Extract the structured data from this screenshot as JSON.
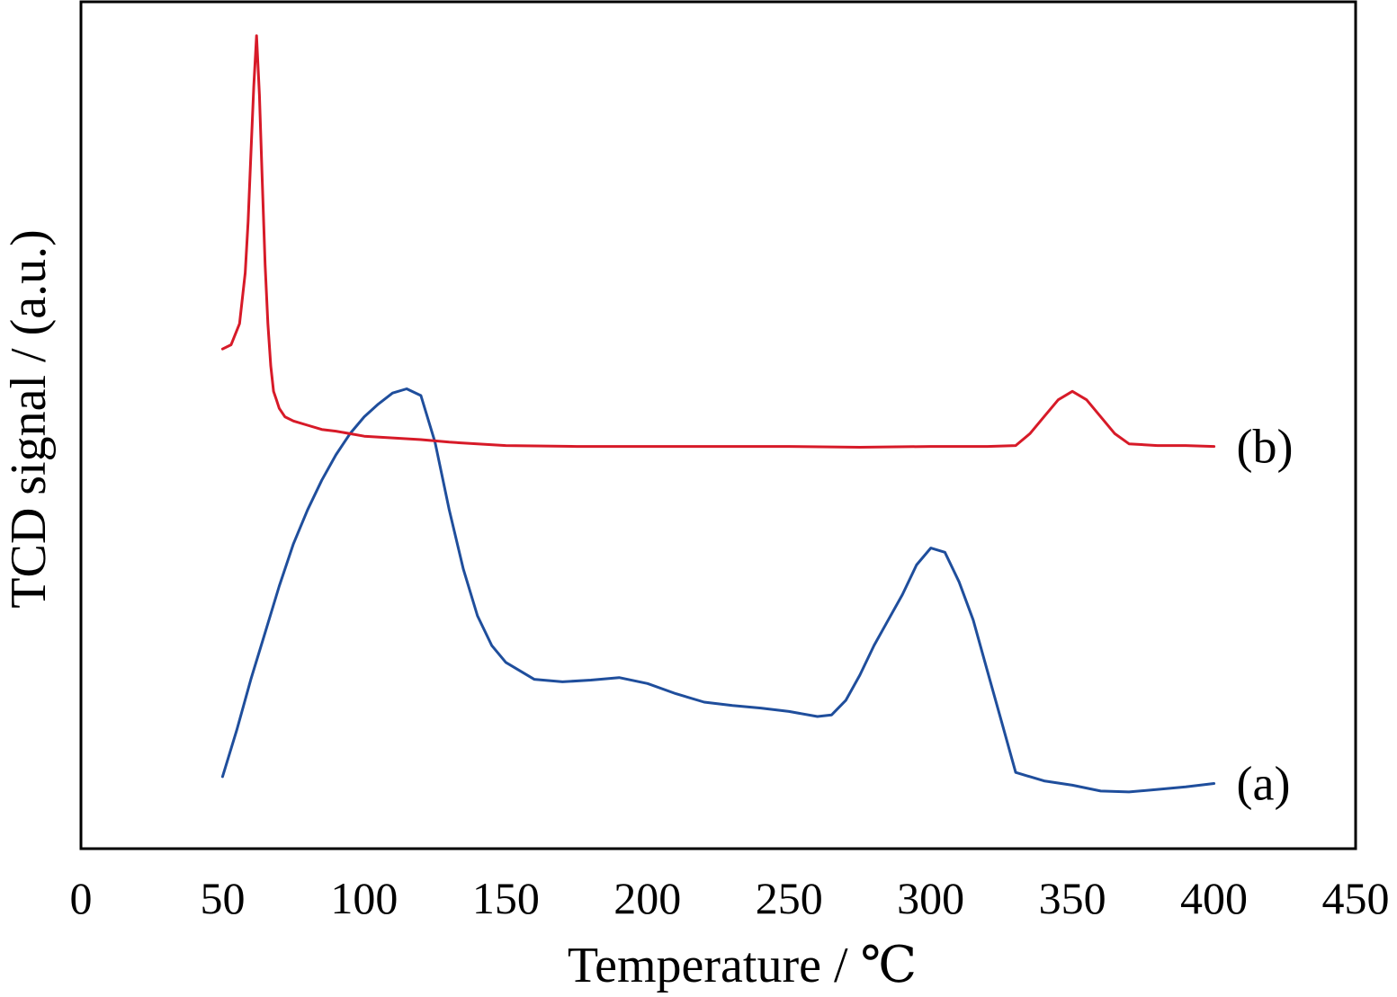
{
  "chart_data": {
    "type": "line",
    "title": "",
    "xlabel": "Temperature / ℃",
    "ylabel": "TCD signal / (a.u.)",
    "xlim": [
      0,
      450
    ],
    "ylim": [
      0,
      100
    ],
    "xticks": [
      0,
      50,
      100,
      150,
      200,
      250,
      300,
      350,
      400,
      450
    ],
    "yticks": [],
    "grid": false,
    "legend": "none",
    "series": [
      {
        "name": "(a)",
        "color": "#1f4e9c",
        "x": [
          50,
          55,
          60,
          65,
          70,
          75,
          80,
          85,
          90,
          95,
          100,
          105,
          110,
          115,
          120,
          125,
          130,
          135,
          140,
          145,
          150,
          160,
          170,
          180,
          190,
          200,
          210,
          220,
          230,
          240,
          250,
          260,
          265,
          270,
          275,
          280,
          285,
          290,
          295,
          300,
          305,
          310,
          315,
          320,
          325,
          330,
          340,
          350,
          360,
          370,
          380,
          390,
          400
        ],
        "y": [
          8.5,
          14,
          20,
          25.5,
          31,
          36,
          40,
          43.5,
          46.5,
          49,
          51,
          52.5,
          53.8,
          54.3,
          53.5,
          48,
          40,
          33,
          27.5,
          24,
          22,
          20,
          19.7,
          19.9,
          20.2,
          19.5,
          18.3,
          17.3,
          16.9,
          16.6,
          16.2,
          15.6,
          15.8,
          17.5,
          20.5,
          24,
          27,
          30,
          33.5,
          35.5,
          35,
          31.5,
          27,
          21,
          15,
          9,
          8,
          7.5,
          6.8,
          6.7,
          7,
          7.3,
          7.7
        ]
      },
      {
        "name": "(b)",
        "color": "#d71a28",
        "x": [
          50,
          53,
          56,
          58,
          59,
          60,
          61,
          62,
          63,
          64,
          65,
          66,
          67,
          68,
          69,
          70,
          72,
          75,
          80,
          85,
          90,
          95,
          100,
          110,
          120,
          130,
          140,
          150,
          175,
          200,
          225,
          250,
          275,
          300,
          320,
          330,
          335,
          340,
          345,
          350,
          355,
          360,
          365,
          370,
          380,
          390,
          400
        ],
        "y": [
          59,
          59.5,
          62,
          68,
          74,
          82,
          90,
          96,
          89,
          79,
          69,
          62,
          57,
          54,
          53,
          52,
          51,
          50.5,
          50,
          49.5,
          49.3,
          49,
          48.7,
          48.5,
          48.3,
          48,
          47.8,
          47.6,
          47.5,
          47.5,
          47.5,
          47.5,
          47.4,
          47.5,
          47.5,
          47.6,
          49,
          51,
          53,
          54,
          53,
          51,
          49,
          47.8,
          47.6,
          47.6,
          47.5
        ]
      }
    ]
  }
}
